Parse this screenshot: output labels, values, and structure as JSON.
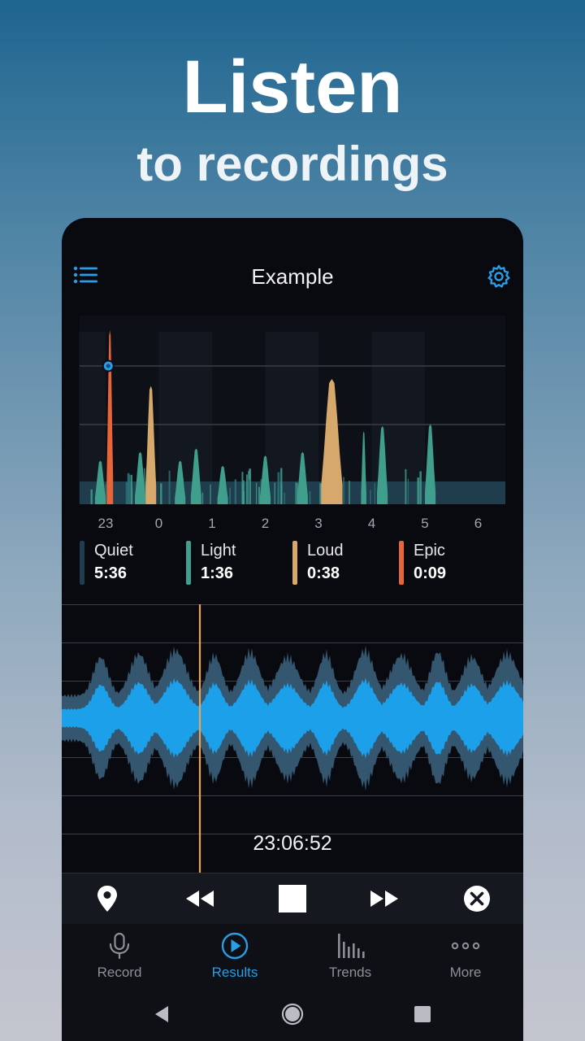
{
  "promo": {
    "headline": "Listen",
    "subline": "to recordings"
  },
  "app": {
    "title": "Example",
    "menu_icon": "list-menu-icon",
    "settings_icon": "gear-icon"
  },
  "colors": {
    "accent": "#2a9de6",
    "quiet": "#1f3d4c",
    "light": "#3f9e8c",
    "loud": "#d6a86c",
    "epic": "#e8653a",
    "wave_core": "#1da0ea",
    "wave_halo": "#34566f",
    "cursor": "#e8a55a"
  },
  "chart_data": {
    "type": "area",
    "title": "",
    "xlabel": "",
    "ylabel": "",
    "x_ticks": [
      "23",
      "0",
      "1",
      "2",
      "3",
      "4",
      "5",
      "6"
    ],
    "grid": true,
    "playhead_marker_hour_offset": 0.05,
    "series": [
      {
        "name": "Epic",
        "segments": [
          {
            "start": 0.02,
            "end": 0.14,
            "peak": 1.0
          }
        ]
      },
      {
        "name": "Loud",
        "segments": [
          {
            "start": 0.75,
            "end": 0.95,
            "peak": 0.68
          },
          {
            "start": 4.05,
            "end": 4.45,
            "peak": 0.72
          }
        ]
      },
      {
        "name": "Light",
        "segments": [
          {
            "start": -0.2,
            "end": 0.0,
            "peak": 0.25
          },
          {
            "start": 0.55,
            "end": 0.75,
            "peak": 0.3
          },
          {
            "start": 1.3,
            "end": 1.5,
            "peak": 0.25
          },
          {
            "start": 1.6,
            "end": 1.8,
            "peak": 0.32
          },
          {
            "start": 2.1,
            "end": 2.3,
            "peak": 0.22
          },
          {
            "start": 2.9,
            "end": 3.1,
            "peak": 0.28
          },
          {
            "start": 3.6,
            "end": 3.8,
            "peak": 0.3
          },
          {
            "start": 4.8,
            "end": 4.9,
            "peak": 0.42
          },
          {
            "start": 5.1,
            "end": 5.3,
            "peak": 0.45
          },
          {
            "start": 6.0,
            "end": 6.2,
            "peak": 0.46
          }
        ]
      }
    ]
  },
  "legend": [
    {
      "label": "Quiet",
      "value": "5:36",
      "color": "#1f3d4c"
    },
    {
      "label": "Light",
      "value": "1:36",
      "color": "#3f9e8c"
    },
    {
      "label": "Loud",
      "value": "0:38",
      "color": "#d6a86c"
    },
    {
      "label": "Epic",
      "value": "0:09",
      "color": "#e8653a"
    }
  ],
  "player": {
    "time": "23:06:52",
    "buttons": [
      "location-pin-icon",
      "rewind-icon",
      "stop-icon",
      "fast-forward-icon",
      "close-circle-icon"
    ]
  },
  "tabs": [
    {
      "label": "Record",
      "icon": "microphone-icon",
      "active": false
    },
    {
      "label": "Results",
      "icon": "play-circle-icon",
      "active": true
    },
    {
      "label": "Trends",
      "icon": "bar-chart-icon",
      "active": false
    },
    {
      "label": "More",
      "icon": "more-dots-icon",
      "active": false
    }
  ],
  "system_nav": [
    "back-icon",
    "home-icon",
    "recents-icon"
  ]
}
